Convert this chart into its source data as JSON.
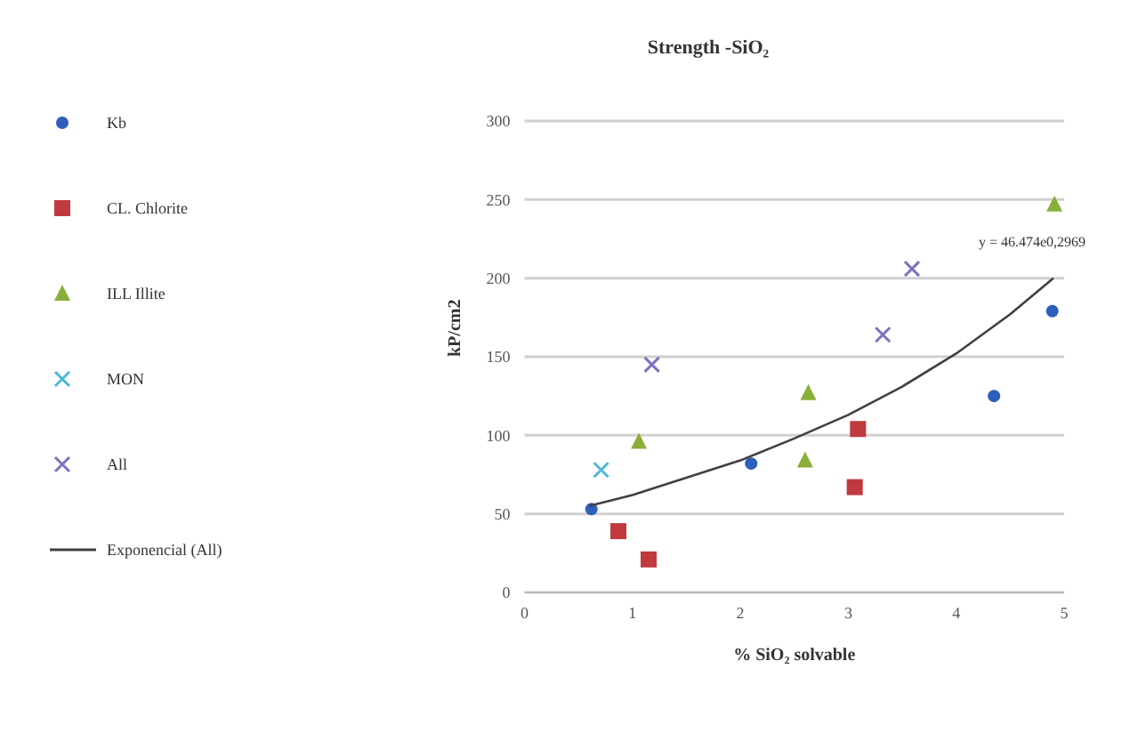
{
  "chart_data": {
    "type": "scatter",
    "title": "Strength -SiO₂",
    "xlabel": "% SiO₂ solvable",
    "ylabel": "kP/cm2",
    "series": [
      {
        "name": "Kb",
        "color": "#2e5fbd",
        "marker": "circle",
        "x": [
          0.62,
          2.1,
          4.35,
          4.89
        ],
        "values": [
          53,
          82,
          125,
          179
        ]
      },
      {
        "name": "CL. Chlorite",
        "color": "#c0393f",
        "marker": "square",
        "x": [
          0.87,
          1.15,
          3.06,
          3.09
        ],
        "values": [
          39,
          21,
          67,
          104
        ]
      },
      {
        "name": "ILL Illite",
        "color": "#8aae3a",
        "marker": "triangle",
        "x": [
          1.06,
          2.6,
          2.63,
          4.91
        ],
        "values": [
          96,
          84,
          127,
          247
        ]
      },
      {
        "name": "MON",
        "color": "#4bb8d8",
        "marker": "cross",
        "x": [
          0.71
        ],
        "values": [
          78
        ]
      },
      {
        "name": "All",
        "color": "#7b72c0",
        "marker": "cross",
        "x": [
          1.18,
          3.32,
          3.59
        ],
        "values": [
          145,
          164,
          206
        ]
      },
      {
        "name": "Exponencial (All)",
        "type": "line",
        "color": "#404040",
        "marker": "none",
        "x": [
          0.6,
          1,
          1.5,
          2,
          2.5,
          3,
          3.5,
          4,
          4.5,
          4.9
        ],
        "values": [
          55,
          62,
          73,
          84,
          98,
          113,
          131,
          152,
          177,
          200
        ]
      }
    ],
    "annotations": [
      "y = 46.474e0,2969"
    ],
    "xlim": [
      0,
      5
    ],
    "xticks": [
      0,
      1,
      2,
      3,
      4,
      5
    ],
    "ylim": [
      0,
      300
    ],
    "yticks": [
      0,
      50,
      100,
      150,
      200,
      250,
      300
    ],
    "grid": "y",
    "legend": "left"
  }
}
